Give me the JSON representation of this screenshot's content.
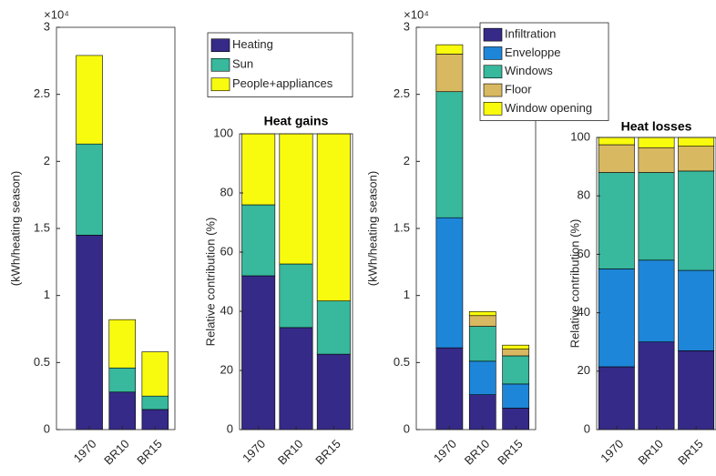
{
  "chart_data": [
    {
      "type": "bar",
      "stacked": true,
      "y_scale_label": "×10⁴",
      "ylabel": "(kWh/heating season)",
      "categories": [
        "1970",
        "BR10",
        "BR15"
      ],
      "series": [
        {
          "name": "Heating",
          "color": "#352a87",
          "values": [
            1.45,
            0.28,
            0.15
          ]
        },
        {
          "name": "Sun",
          "color": "#38b89c",
          "values": [
            0.68,
            0.18,
            0.1
          ]
        },
        {
          "name": "People+appliances",
          "color": "#f9fb0e",
          "values": [
            0.66,
            0.36,
            0.33
          ]
        }
      ],
      "ylim": [
        0,
        3
      ],
      "yticks": [
        0,
        0.5,
        1,
        1.5,
        2,
        2.5,
        3
      ],
      "legend": "outside-right"
    },
    {
      "type": "bar",
      "stacked": true,
      "title": "Heat gains",
      "ylabel": "Relative contribution (%)",
      "categories": [
        "1970",
        "BR10",
        "BR15"
      ],
      "series": [
        {
          "color": "#352a87",
          "values": [
            52,
            34.5,
            25.5
          ]
        },
        {
          "color": "#38b89c",
          "values": [
            24,
            21.5,
            18
          ]
        },
        {
          "color": "#f9fb0e",
          "values": [
            24,
            44,
            56.5
          ]
        }
      ],
      "ylim": [
        0,
        100
      ],
      "yticks": [
        0,
        20,
        40,
        60,
        80,
        100
      ]
    },
    {
      "type": "bar",
      "stacked": true,
      "y_scale_label": "×10⁴",
      "ylabel": "(kWh/heating season)",
      "categories": [
        "1970",
        "BR10",
        "BR15"
      ],
      "series": [
        {
          "name": "Infiltration",
          "color": "#352a87",
          "values": [
            0.61,
            0.26,
            0.16
          ]
        },
        {
          "name": "Enveloppe",
          "color": "#1e86d8",
          "values": [
            0.97,
            0.25,
            0.18
          ]
        },
        {
          "name": "Windows",
          "color": "#38b89c",
          "values": [
            0.94,
            0.26,
            0.21
          ]
        },
        {
          "name": "Floor",
          "color": "#d8b860",
          "values": [
            0.28,
            0.08,
            0.05
          ]
        },
        {
          "name": "Window opening",
          "color": "#f9fb0e",
          "values": [
            0.07,
            0.03,
            0.03
          ]
        }
      ],
      "ylim": [
        0,
        3
      ],
      "yticks": [
        0,
        0.5,
        1,
        1.5,
        2,
        2.5,
        3
      ],
      "legend": "outside-right"
    },
    {
      "type": "bar",
      "stacked": true,
      "title": "Heat losses",
      "ylabel": "Relative contribution (%)",
      "categories": [
        "1970",
        "BR10",
        "BR15"
      ],
      "series": [
        {
          "color": "#352a87",
          "values": [
            21.5,
            30,
            27
          ]
        },
        {
          "color": "#1e86d8",
          "values": [
            33.5,
            28,
            27.5
          ]
        },
        {
          "color": "#38b89c",
          "values": [
            33,
            30,
            34
          ]
        },
        {
          "color": "#d8b860",
          "values": [
            9.5,
            8.5,
            8.5
          ]
        },
        {
          "color": "#f9fb0e",
          "values": [
            2.5,
            3.5,
            3
          ]
        }
      ],
      "ylim": [
        0,
        100
      ],
      "yticks": [
        0,
        20,
        40,
        60,
        80,
        100
      ]
    }
  ]
}
